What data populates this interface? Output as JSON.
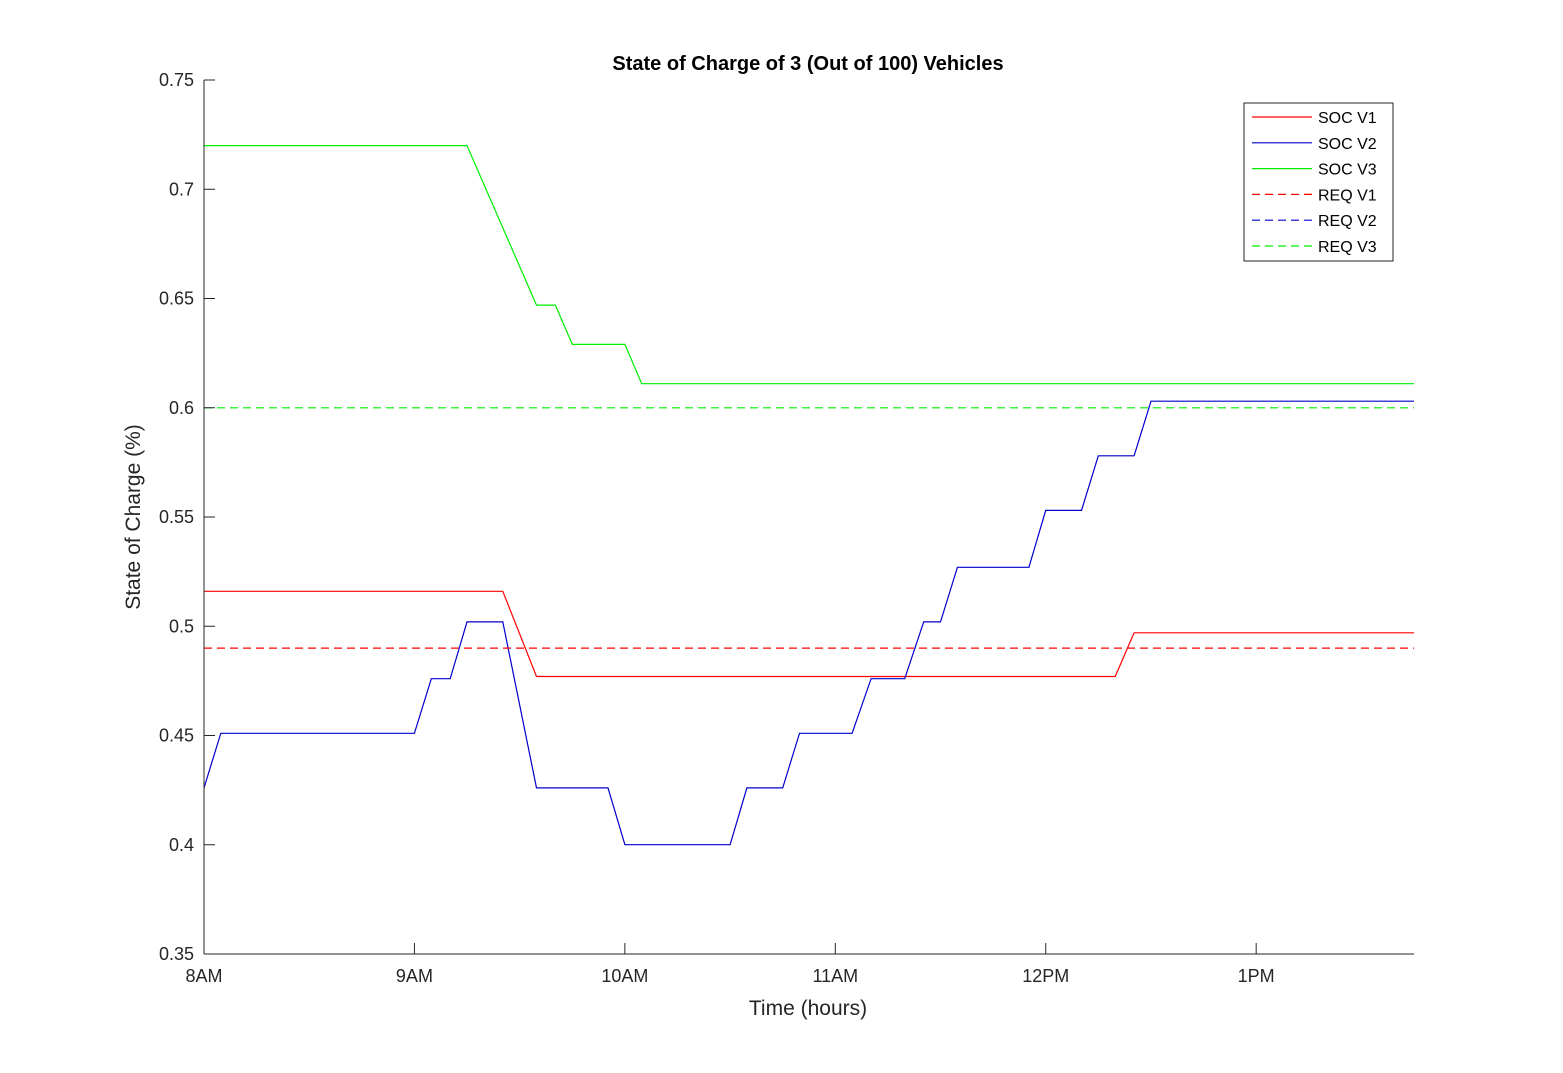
{
  "chart_data": {
    "type": "line",
    "title": "State of Charge of 3 (Out of 100) Vehicles",
    "xlabel": "Time (hours)",
    "ylabel": "State of Charge (%)",
    "xlim": [
      8,
      13.75
    ],
    "ylim": [
      0.35,
      0.75
    ],
    "x_ticks": [
      {
        "value": 8,
        "label": "8AM"
      },
      {
        "value": 9,
        "label": "9AM"
      },
      {
        "value": 10,
        "label": "10AM"
      },
      {
        "value": 11,
        "label": "11AM"
      },
      {
        "value": 12,
        "label": "12PM"
      },
      {
        "value": 13,
        "label": "1PM"
      }
    ],
    "y_ticks": [
      {
        "value": 0.35,
        "label": "0.35"
      },
      {
        "value": 0.4,
        "label": "0.4"
      },
      {
        "value": 0.45,
        "label": "0.45"
      },
      {
        "value": 0.5,
        "label": "0.5"
      },
      {
        "value": 0.55,
        "label": "0.55"
      },
      {
        "value": 0.6,
        "label": "0.6"
      },
      {
        "value": 0.65,
        "label": "0.65"
      },
      {
        "value": 0.7,
        "label": "0.7"
      },
      {
        "value": 0.75,
        "label": "0.75"
      }
    ],
    "grid": false,
    "legend_position": "top-right",
    "series": [
      {
        "name": "SOC V1",
        "color": "#ff0000",
        "dashed": false,
        "x": [
          8,
          9.42,
          9.58,
          12.33,
          12.42,
          13.75
        ],
        "y": [
          0.516,
          0.516,
          0.477,
          0.477,
          0.497,
          0.497
        ]
      },
      {
        "name": "SOC V2",
        "color": "#0000cc",
        "dashed": false,
        "x": [
          8,
          8.08,
          9.0,
          9.08,
          9.17,
          9.25,
          9.42,
          9.58,
          9.92,
          10.0,
          10.5,
          10.58,
          10.75,
          10.83,
          11.08,
          11.17,
          11.33,
          11.42,
          11.5,
          11.58,
          11.92,
          12.0,
          12.17,
          12.25,
          12.42,
          12.5,
          13.75
        ],
        "y": [
          0.426,
          0.451,
          0.451,
          0.476,
          0.476,
          0.502,
          0.502,
          0.426,
          0.426,
          0.4,
          0.4,
          0.426,
          0.426,
          0.451,
          0.451,
          0.476,
          0.476,
          0.502,
          0.502,
          0.527,
          0.527,
          0.553,
          0.553,
          0.578,
          0.578,
          0.603,
          0.603
        ]
      },
      {
        "name": "SOC V3",
        "color": "#00ee00",
        "dashed": false,
        "x": [
          8,
          9.25,
          9.58,
          9.67,
          9.75,
          10.0,
          10.08,
          13.75
        ],
        "y": [
          0.72,
          0.72,
          0.647,
          0.647,
          0.629,
          0.629,
          0.611,
          0.611
        ]
      },
      {
        "name": "REQ V1",
        "color": "#ff0000",
        "dashed": true,
        "x": [
          8,
          13.75
        ],
        "y": [
          0.49,
          0.49
        ]
      },
      {
        "name": "REQ V2",
        "color": "#0000cc",
        "dashed": true,
        "x": [],
        "y": []
      },
      {
        "name": "REQ V3",
        "color": "#00ee00",
        "dashed": true,
        "x": [
          8,
          13.75
        ],
        "y": [
          0.6,
          0.6
        ]
      }
    ]
  }
}
